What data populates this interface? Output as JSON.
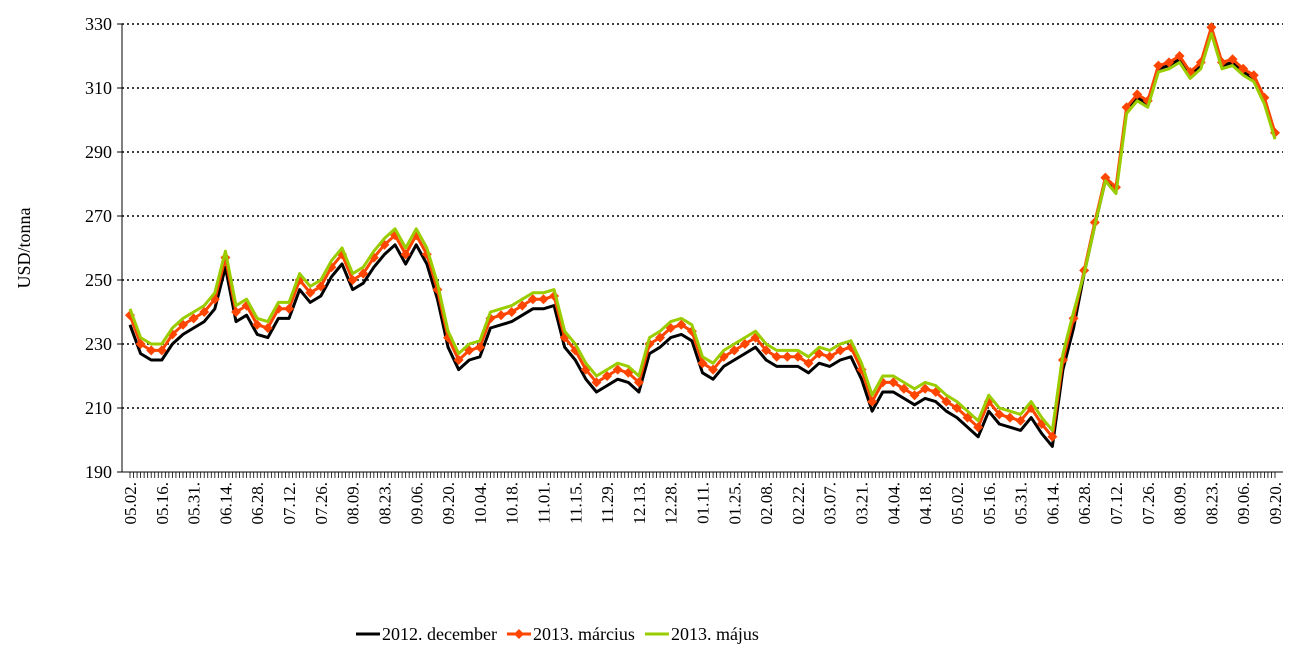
{
  "chart_data": {
    "type": "line",
    "y_label": "USD/tonna",
    "categories": [
      "05.02.",
      null,
      null,
      "05.16.",
      null,
      null,
      "05.31.",
      null,
      null,
      "06.14.",
      null,
      null,
      "06.28.",
      null,
      null,
      "07.12.",
      null,
      null,
      "07.26.",
      null,
      null,
      "08.09.",
      null,
      null,
      "08.23.",
      null,
      null,
      "09.06.",
      null,
      null,
      "09.20.",
      null,
      null,
      "10.04.",
      null,
      null,
      "10.18.",
      null,
      null,
      "11.01.",
      null,
      null,
      "11.15.",
      null,
      null,
      "11.29.",
      null,
      null,
      "12.13.",
      null,
      null,
      "12.28.",
      null,
      null,
      "01.11.",
      null,
      null,
      "01.25.",
      null,
      null,
      "02.08.",
      null,
      null,
      "02.22.",
      null,
      null,
      "03.07.",
      null,
      null,
      "03.21.",
      null,
      null,
      "04.04.",
      null,
      null,
      "04.18.",
      null,
      null,
      "05.02.",
      null,
      null,
      "05.16.",
      null,
      null,
      "05.31.",
      null,
      null,
      "06.14.",
      null,
      null,
      "06.28.",
      null,
      null,
      "07.12.",
      null,
      null,
      "07.26.",
      null,
      null,
      "08.09.",
      null,
      null,
      "08.23.",
      null,
      null,
      "09.06.",
      null,
      null,
      "09.20."
    ],
    "series": [
      {
        "name": "2012. december",
        "color": "#000000",
        "marker": false,
        "values": [
          236,
          227,
          225,
          225,
          230,
          233,
          235,
          237,
          241,
          254,
          237,
          239,
          233,
          232,
          238,
          238,
          247,
          243,
          245,
          251,
          255,
          247,
          249,
          254,
          258,
          261,
          255,
          261,
          255,
          244,
          229,
          222,
          225,
          226,
          235,
          236,
          237,
          239,
          241,
          241,
          242,
          229,
          225,
          219,
          215,
          217,
          219,
          218,
          215,
          227,
          229,
          232,
          233,
          231,
          221,
          219,
          223,
          225,
          227,
          229,
          225,
          223,
          223,
          223,
          221,
          224,
          223,
          225,
          226,
          219,
          209,
          215,
          215,
          213,
          211,
          213,
          212,
          209,
          207,
          204,
          201,
          209,
          205,
          204,
          203,
          207,
          202,
          198,
          222,
          235,
          252,
          267,
          281,
          278,
          303,
          307,
          305,
          316,
          317,
          319,
          314,
          317,
          328,
          317,
          318,
          315,
          313,
          306,
          295
        ]
      },
      {
        "name": "2013. március",
        "color": "#ff4500",
        "marker": true,
        "values": [
          239,
          230,
          228,
          228,
          233,
          236,
          238,
          240,
          244,
          257,
          240,
          242,
          236,
          235,
          241,
          241,
          250,
          246,
          248,
          254,
          258,
          250,
          252,
          257,
          261,
          264,
          258,
          264,
          258,
          247,
          232,
          225,
          228,
          229,
          238,
          239,
          240,
          242,
          244,
          244,
          245,
          232,
          228,
          222,
          218,
          220,
          222,
          221,
          218,
          230,
          232,
          235,
          236,
          234,
          224,
          222,
          226,
          228,
          230,
          232,
          228,
          226,
          226,
          226,
          224,
          227,
          226,
          228,
          229,
          222,
          212,
          218,
          218,
          216,
          214,
          216,
          215,
          212,
          210,
          207,
          204,
          212,
          208,
          207,
          206,
          210,
          205,
          201,
          225,
          238,
          253,
          268,
          282,
          279,
          304,
          308,
          306,
          317,
          318,
          320,
          315,
          318,
          329,
          318,
          319,
          316,
          314,
          307,
          296
        ]
      },
      {
        "name": "2013. május",
        "color": "#9acd00",
        "marker": false,
        "values": [
          241,
          232,
          230,
          230,
          235,
          238,
          240,
          242,
          246,
          259,
          242,
          244,
          238,
          237,
          243,
          243,
          252,
          248,
          250,
          256,
          260,
          252,
          254,
          259,
          263,
          266,
          260,
          266,
          260,
          249,
          234,
          227,
          230,
          231,
          240,
          241,
          242,
          244,
          246,
          246,
          247,
          234,
          230,
          224,
          220,
          222,
          224,
          223,
          220,
          232,
          234,
          237,
          238,
          236,
          226,
          224,
          228,
          230,
          232,
          234,
          230,
          228,
          228,
          228,
          226,
          229,
          228,
          230,
          231,
          224,
          214,
          220,
          220,
          218,
          216,
          218,
          217,
          214,
          212,
          209,
          206,
          214,
          210,
          209,
          208,
          212,
          207,
          203,
          227,
          240,
          252,
          267,
          281,
          277,
          302,
          306,
          304,
          315,
          316,
          318,
          313,
          316,
          327,
          316,
          317,
          314,
          312,
          305,
          294
        ]
      }
    ],
    "ylim": [
      190,
      330
    ],
    "yticks": [
      190,
      210,
      230,
      250,
      270,
      290,
      310,
      330
    ],
    "grid": true,
    "legend": "bottom"
  }
}
